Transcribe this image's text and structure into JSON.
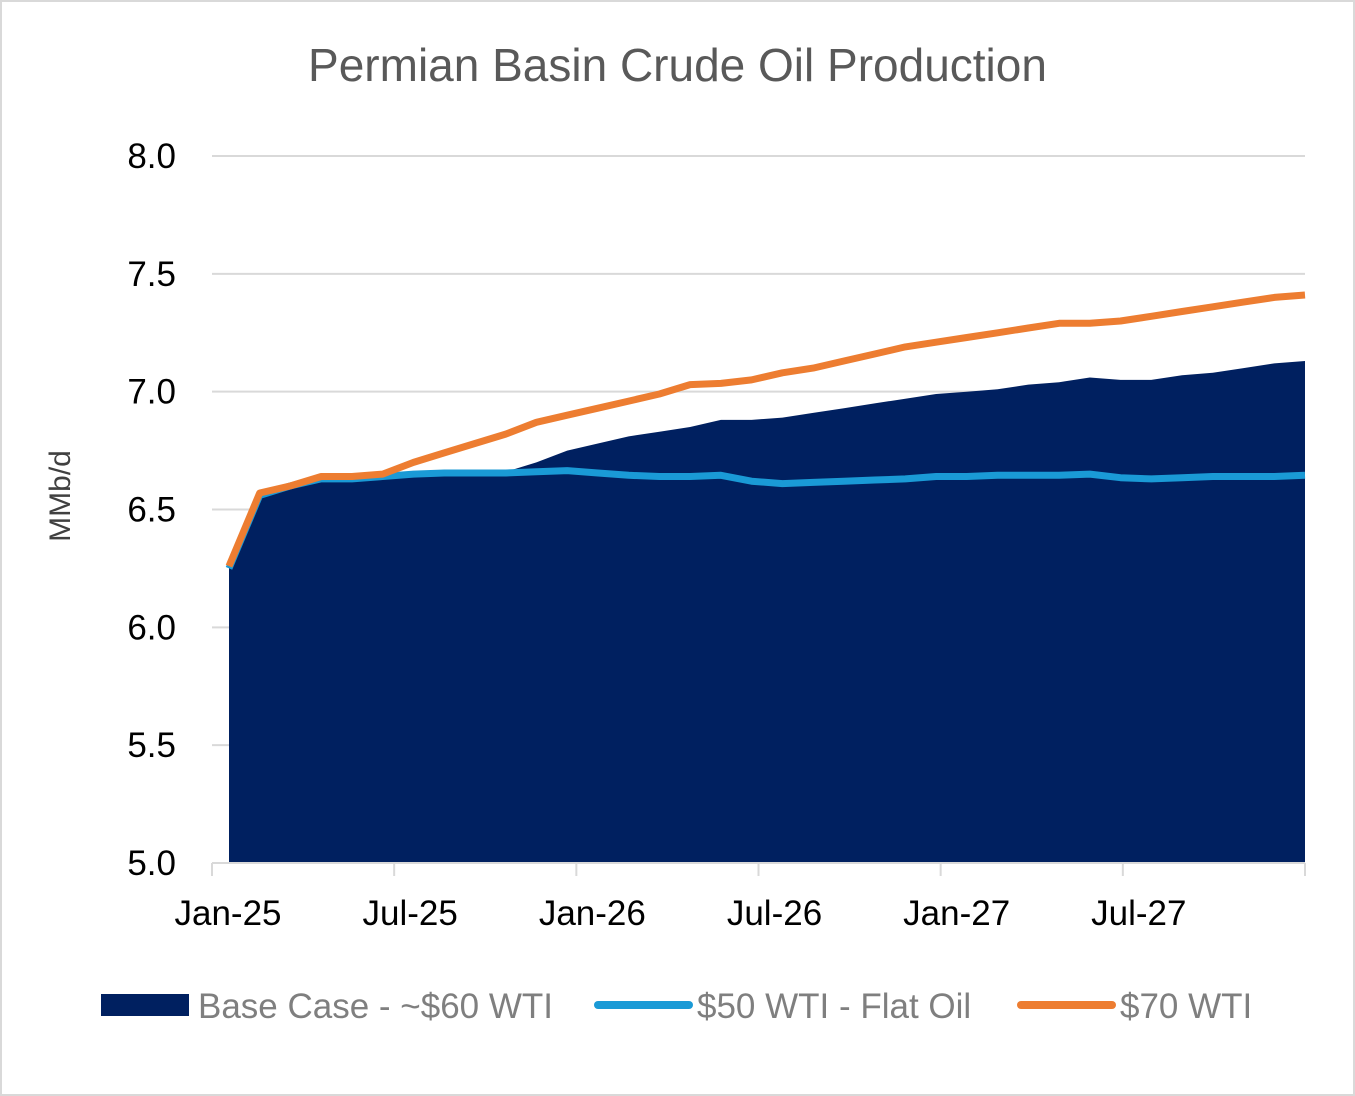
{
  "chart_data": {
    "type": "area",
    "title": "Permian Basin Crude Oil Production",
    "ylabel": "MMb/d",
    "xlabel": "",
    "ylim": [
      5.0,
      8.0
    ],
    "yticks": [
      "5.0",
      "5.5",
      "6.0",
      "6.5",
      "7.0",
      "7.5",
      "8.0"
    ],
    "xticks": [
      "Jan-25",
      "Jul-25",
      "Jan-26",
      "Jul-26",
      "Jan-27",
      "Jul-27"
    ],
    "x": [
      "Jan-25",
      "Feb-25",
      "Mar-25",
      "Apr-25",
      "May-25",
      "Jun-25",
      "Jul-25",
      "Aug-25",
      "Sep-25",
      "Oct-25",
      "Nov-25",
      "Dec-25",
      "Jan-26",
      "Feb-26",
      "Mar-26",
      "Apr-26",
      "May-26",
      "Jun-26",
      "Jul-26",
      "Aug-26",
      "Sep-26",
      "Oct-26",
      "Nov-26",
      "Dec-26",
      "Jan-27",
      "Feb-27",
      "Mar-27",
      "Apr-27",
      "May-27",
      "Jun-27",
      "Jul-27",
      "Aug-27",
      "Sep-27",
      "Oct-27",
      "Nov-27",
      "Dec-27"
    ],
    "grid": true,
    "legend_position": "bottom",
    "series": [
      {
        "name": "Base Case - ~$60 WTI",
        "kind": "area",
        "color": "#002060",
        "values": [
          6.25,
          6.56,
          6.6,
          6.63,
          6.63,
          6.64,
          6.65,
          6.65,
          6.66,
          6.66,
          6.7,
          6.75,
          6.78,
          6.81,
          6.83,
          6.85,
          6.88,
          6.88,
          6.89,
          6.91,
          6.93,
          6.95,
          6.97,
          6.99,
          7.0,
          7.01,
          7.03,
          7.04,
          7.06,
          7.05,
          7.05,
          7.07,
          7.08,
          7.1,
          7.12,
          7.13
        ]
      },
      {
        "name": "$50 WTI - Flat Oil",
        "kind": "line",
        "color": "#1a9ad6",
        "values": [
          6.25,
          6.56,
          6.6,
          6.63,
          6.63,
          6.64,
          6.65,
          6.655,
          6.655,
          6.655,
          6.66,
          6.665,
          6.655,
          6.645,
          6.64,
          6.64,
          6.645,
          6.62,
          6.61,
          6.615,
          6.62,
          6.625,
          6.63,
          6.64,
          6.64,
          6.645,
          6.645,
          6.645,
          6.65,
          6.635,
          6.63,
          6.635,
          6.64,
          6.64,
          6.64,
          6.645
        ]
      },
      {
        "name": "$70 WTI",
        "kind": "line",
        "color": "#ed7d31",
        "values": [
          6.26,
          6.57,
          6.6,
          6.64,
          6.64,
          6.65,
          6.7,
          6.74,
          6.78,
          6.82,
          6.87,
          6.9,
          6.93,
          6.96,
          6.99,
          7.03,
          7.035,
          7.05,
          7.08,
          7.1,
          7.13,
          7.16,
          7.19,
          7.21,
          7.23,
          7.25,
          7.27,
          7.29,
          7.29,
          7.3,
          7.32,
          7.34,
          7.36,
          7.38,
          7.4,
          7.41
        ]
      }
    ]
  }
}
